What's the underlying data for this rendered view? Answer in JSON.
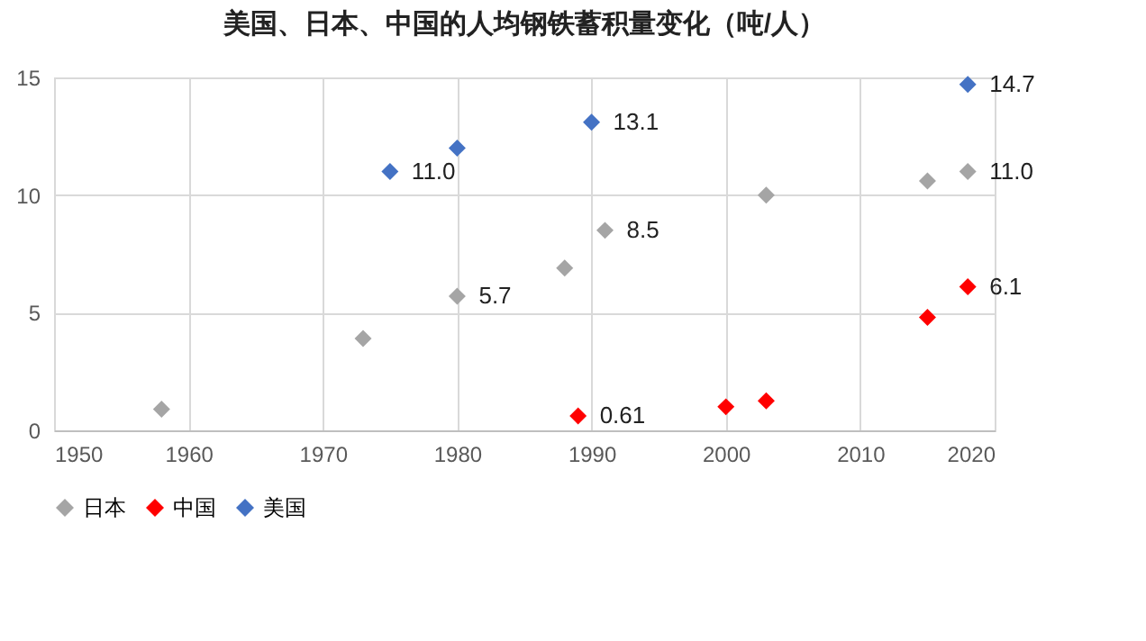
{
  "chart_data": {
    "type": "scatter",
    "title": "美国、日本、中国的人均钢铁蓄积量变化（吨/人）",
    "series": [
      {
        "name": "日本",
        "color": "#a5a5a5",
        "x": [
          1958,
          1973,
          1980,
          1988,
          1991,
          2003,
          2015,
          2018
        ],
        "values": [
          0.9,
          3.9,
          5.7,
          6.9,
          8.5,
          10.0,
          10.6,
          11.0
        ],
        "value_labels": [
          null,
          null,
          "5.7",
          null,
          "8.5",
          null,
          null,
          "11.0"
        ]
      },
      {
        "name": "中国",
        "color": "#ff0000",
        "x": [
          1989,
          2000,
          2003,
          2015,
          2018
        ],
        "values": [
          0.61,
          1.0,
          1.25,
          4.8,
          6.1
        ],
        "value_labels": [
          "0.61",
          null,
          null,
          null,
          "6.1"
        ]
      },
      {
        "name": "美国",
        "color": "#4472c4",
        "x": [
          1975,
          1980,
          1990,
          2018
        ],
        "values": [
          11.0,
          12.0,
          13.1,
          14.7
        ],
        "value_labels": [
          "11.0",
          null,
          "13.1",
          "14.7"
        ]
      }
    ],
    "xlim": [
      1950,
      2020
    ],
    "xticks": [
      1950,
      1960,
      1970,
      1980,
      1990,
      2000,
      2010,
      2020
    ],
    "ylim": [
      0,
      15
    ],
    "yticks": [
      0,
      5,
      10,
      15
    ],
    "grid": true,
    "legend": "bottom",
    "marker": "diamond"
  }
}
